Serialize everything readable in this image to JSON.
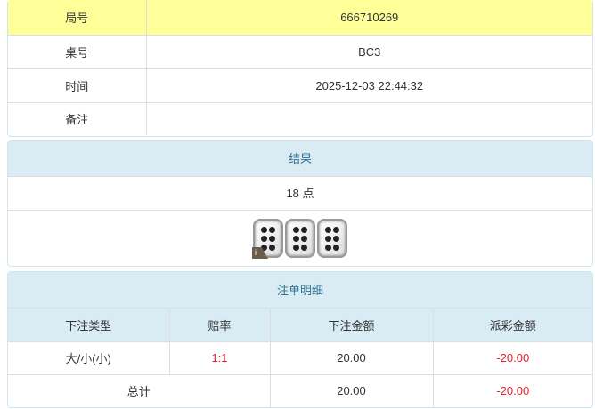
{
  "info": {
    "rows": [
      {
        "label": "局号",
        "value": "666710269"
      },
      {
        "label": "桌号",
        "value": "BC3"
      },
      {
        "label": "时间",
        "value": "2025-12-03 22:44:32"
      },
      {
        "label": "备注",
        "value": ""
      }
    ]
  },
  "result": {
    "title": "结果",
    "points": "18 点",
    "dice": [
      6,
      6,
      6
    ],
    "info_badge": "i"
  },
  "bets": {
    "title": "注单明细",
    "headers": [
      "下注类型",
      "赔率",
      "下注金额",
      "派彩金额"
    ],
    "rows": [
      {
        "type": "大/小(小)",
        "odds": "1:1",
        "amount": "20.00",
        "payout": "-20.00"
      }
    ],
    "total": {
      "label": "总计",
      "amount": "20.00",
      "payout": "-20.00"
    }
  },
  "colors": {
    "highlight": "#ffff99",
    "header": "#d9ecf4",
    "negative": "#e4202a"
  }
}
